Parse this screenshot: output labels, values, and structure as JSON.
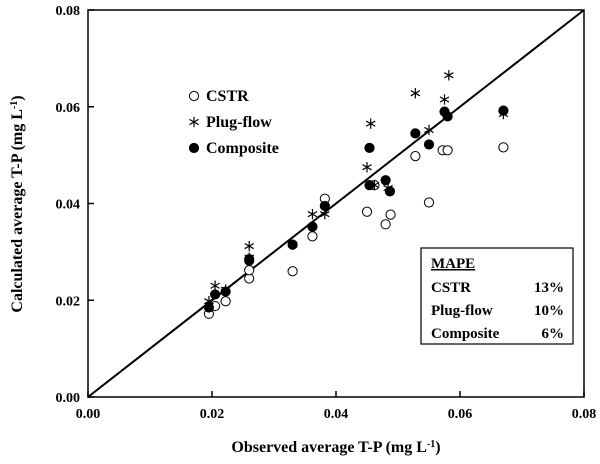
{
  "chart_data": {
    "type": "scatter",
    "xlabel": "Observed average T-P (mg L",
    "ylabel": "Calculated average T-P (mg L",
    "label_unit_sup": "-1",
    "label_close": ")",
    "xlim": [
      0,
      0.08
    ],
    "ylim": [
      0,
      0.08
    ],
    "x_ticks": [
      "0.00",
      "0.02",
      "0.04",
      "0.06",
      "0.08"
    ],
    "y_ticks": [
      "0.00",
      "0.02",
      "0.04",
      "0.06",
      "0.08"
    ],
    "x_tick_values": [
      0,
      0.02,
      0.04,
      0.06,
      0.08
    ],
    "y_tick_values": [
      0,
      0.02,
      0.04,
      0.06,
      0.08
    ],
    "grid": false,
    "legend_position": "upper-left",
    "reference_line": {
      "kind": "1:1",
      "from": [
        0,
        0
      ],
      "to": [
        0.08,
        0.08
      ]
    },
    "series": [
      {
        "name": "CSTR",
        "marker": "open-circle",
        "points": [
          [
            0.0195,
            0.0172
          ],
          [
            0.0205,
            0.0188
          ],
          [
            0.0222,
            0.0198
          ],
          [
            0.026,
            0.0245
          ],
          [
            0.026,
            0.0262
          ],
          [
            0.033,
            0.026
          ],
          [
            0.0362,
            0.0332
          ],
          [
            0.0382,
            0.041
          ],
          [
            0.045,
            0.0383
          ],
          [
            0.0462,
            0.0438
          ],
          [
            0.048,
            0.0357
          ],
          [
            0.0488,
            0.0377
          ],
          [
            0.0528,
            0.0498
          ],
          [
            0.055,
            0.0402
          ],
          [
            0.0572,
            0.051
          ],
          [
            0.058,
            0.051
          ],
          [
            0.067,
            0.0516
          ]
        ]
      },
      {
        "name": "Plug-flow",
        "marker": "asterisk",
        "points": [
          [
            0.0195,
            0.0198
          ],
          [
            0.0205,
            0.023
          ],
          [
            0.0222,
            0.0222
          ],
          [
            0.026,
            0.0312
          ],
          [
            0.026,
            0.0288
          ],
          [
            0.033,
            0.0315
          ],
          [
            0.0362,
            0.0378
          ],
          [
            0.0382,
            0.0378
          ],
          [
            0.045,
            0.0475
          ],
          [
            0.0456,
            0.0565
          ],
          [
            0.0462,
            0.0438
          ],
          [
            0.0484,
            0.0432
          ],
          [
            0.0528,
            0.0628
          ],
          [
            0.055,
            0.0552
          ],
          [
            0.0575,
            0.0615
          ],
          [
            0.0582,
            0.0665
          ],
          [
            0.067,
            0.0585
          ]
        ]
      },
      {
        "name": "Composite",
        "marker": "filled-circle",
        "points": [
          [
            0.0195,
            0.0185
          ],
          [
            0.0205,
            0.0212
          ],
          [
            0.0222,
            0.0218
          ],
          [
            0.026,
            0.0282
          ],
          [
            0.026,
            0.0285
          ],
          [
            0.033,
            0.0315
          ],
          [
            0.0362,
            0.0352
          ],
          [
            0.0382,
            0.0395
          ],
          [
            0.0454,
            0.0438
          ],
          [
            0.0454,
            0.0515
          ],
          [
            0.048,
            0.0448
          ],
          [
            0.0487,
            0.0425
          ],
          [
            0.0528,
            0.0545
          ],
          [
            0.055,
            0.0522
          ],
          [
            0.0575,
            0.059
          ],
          [
            0.058,
            0.058
          ],
          [
            0.067,
            0.0592
          ]
        ]
      }
    ],
    "mape_box": {
      "title": "MAPE",
      "rows": [
        {
          "label": "CSTR",
          "value": "13%"
        },
        {
          "label": "Plug-flow",
          "value": "10%"
        },
        {
          "label": "Composite",
          "value": "6%"
        }
      ]
    }
  }
}
